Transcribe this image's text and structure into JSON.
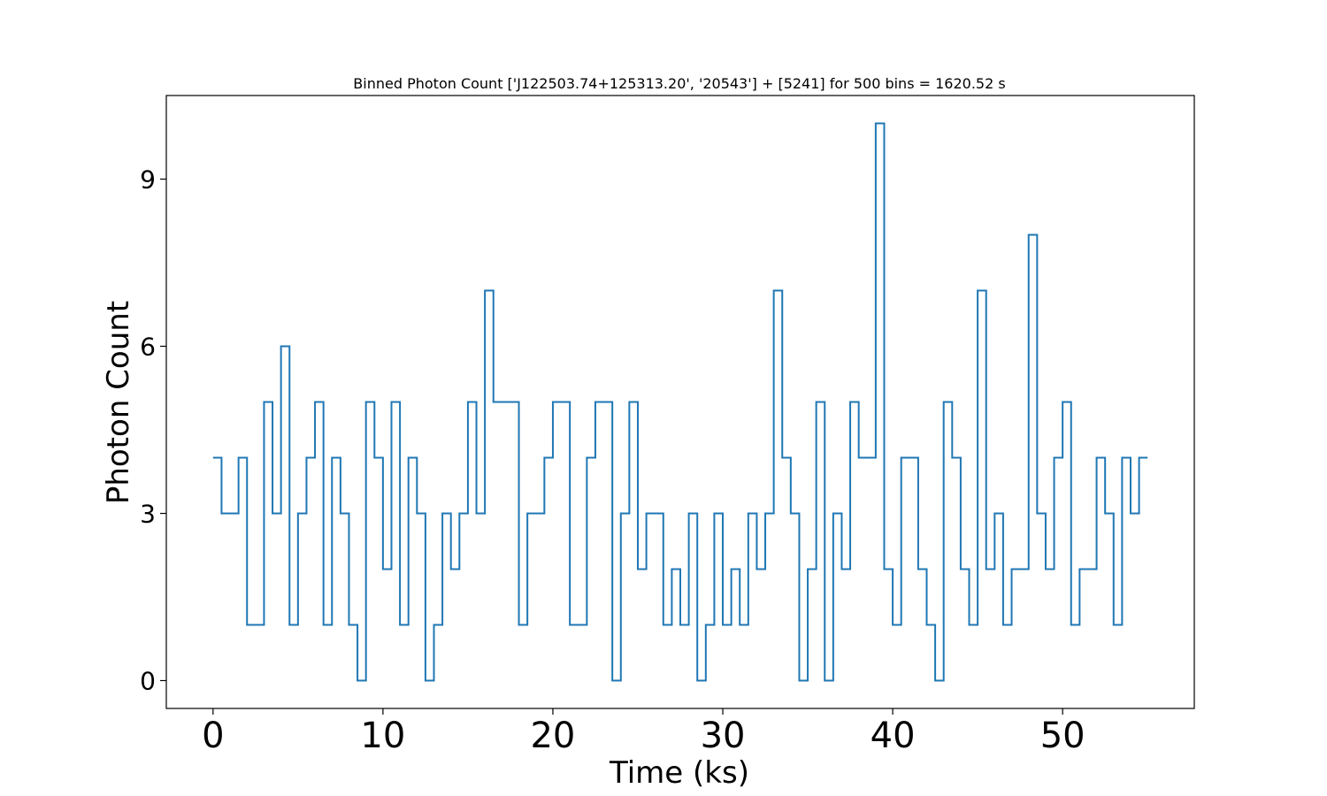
{
  "chart_data": {
    "type": "line",
    "step": "post",
    "title": "Binned Photon Count ['J122503.74+125313.20', '20543'] + [5241] for 500 bins = 1620.52 s",
    "xlabel": "Time (ks)",
    "ylabel": "Photon Count",
    "xlim": [
      -2.75,
      57.75
    ],
    "ylim": [
      -0.5,
      10.5
    ],
    "xticks": [
      0,
      10,
      20,
      30,
      40,
      50
    ],
    "xtick_labels": [
      "0",
      "10",
      "20",
      "30",
      "40",
      "50"
    ],
    "yticks": [
      0,
      3,
      6,
      9
    ],
    "ytick_labels": [
      "0",
      "3",
      "6",
      "9"
    ],
    "grid": false,
    "line_color": "#1f77b4",
    "bin_width": 0.5,
    "x": [
      0.0,
      0.5,
      1.0,
      1.5,
      2.0,
      2.5,
      3.0,
      3.5,
      4.0,
      4.5,
      5.0,
      5.5,
      6.0,
      6.5,
      7.0,
      7.5,
      8.0,
      8.5,
      9.0,
      9.5,
      10.0,
      10.5,
      11.0,
      11.5,
      12.0,
      12.5,
      13.0,
      13.5,
      14.0,
      14.5,
      15.0,
      15.5,
      16.0,
      16.5,
      17.0,
      17.5,
      18.0,
      18.5,
      19.0,
      19.5,
      20.0,
      20.5,
      21.0,
      21.5,
      22.0,
      22.5,
      23.0,
      23.5,
      24.0,
      24.5,
      25.0,
      25.5,
      26.0,
      26.5,
      27.0,
      27.5,
      28.0,
      28.5,
      29.0,
      29.5,
      30.0,
      30.5,
      31.0,
      31.5,
      32.0,
      32.5,
      33.0,
      33.5,
      34.0,
      34.5,
      35.0,
      35.5,
      36.0,
      36.5,
      37.0,
      37.5,
      38.0,
      38.5,
      39.0,
      39.5,
      40.0,
      40.5,
      41.0,
      41.5,
      42.0,
      42.5,
      43.0,
      43.5,
      44.0,
      44.5,
      45.0,
      45.5,
      46.0,
      46.5,
      47.0,
      47.5,
      48.0,
      48.5,
      49.0,
      49.5,
      50.0,
      50.5,
      51.0,
      51.5,
      52.0,
      52.5,
      53.0,
      53.5,
      54.0,
      54.5
    ],
    "y": [
      4,
      3,
      3,
      4,
      1,
      1,
      5,
      3,
      6,
      1,
      3,
      4,
      5,
      1,
      4,
      3,
      1,
      0,
      5,
      4,
      2,
      5,
      1,
      4,
      3,
      0,
      1,
      3,
      2,
      3,
      5,
      3,
      7,
      5,
      5,
      5,
      1,
      3,
      3,
      4,
      5,
      5,
      1,
      1,
      4,
      5,
      5,
      0,
      3,
      5,
      2,
      3,
      3,
      1,
      2,
      1,
      3,
      0,
      1,
      3,
      1,
      2,
      1,
      3,
      2,
      3,
      7,
      4,
      3,
      0,
      2,
      5,
      0,
      3,
      2,
      5,
      4,
      4,
      10,
      2,
      1,
      4,
      4,
      2,
      1,
      0,
      5,
      4,
      2,
      1,
      7,
      2,
      3,
      1,
      2,
      2,
      8,
      3,
      2,
      4,
      5,
      1,
      2,
      2,
      4,
      3,
      1,
      4,
      3,
      4
    ]
  }
}
